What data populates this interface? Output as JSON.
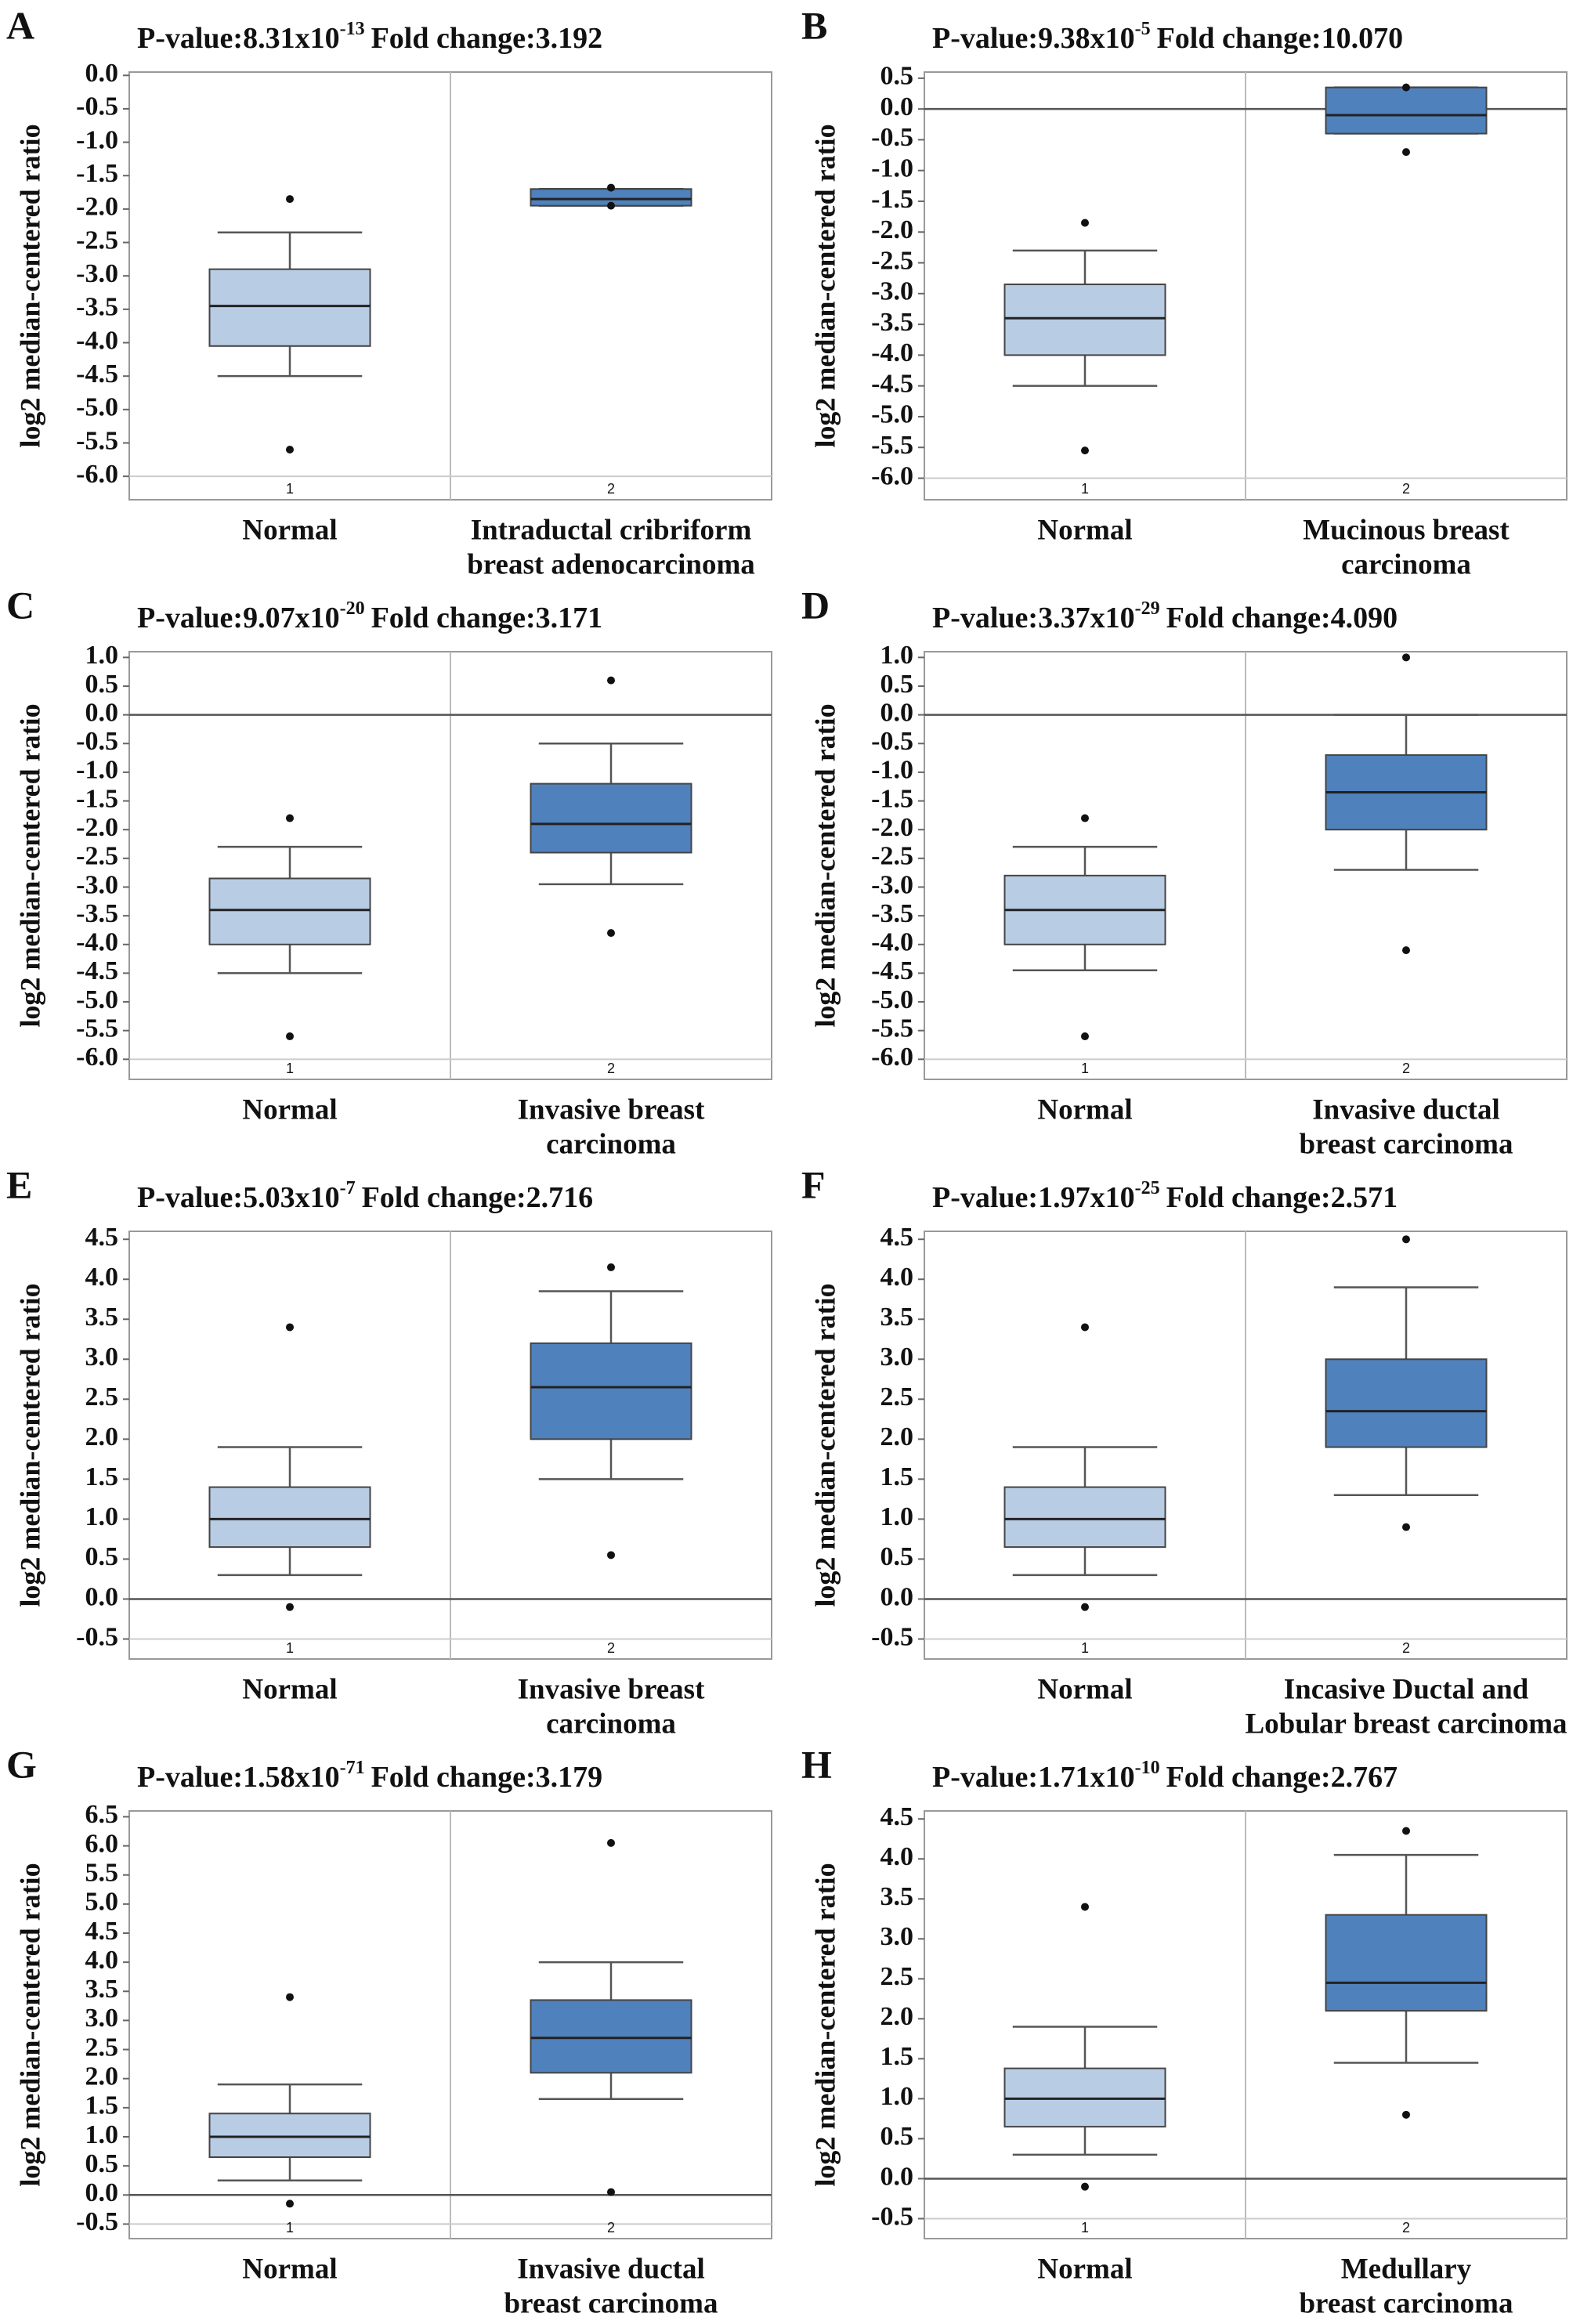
{
  "chart_data": [
    {
      "type": "box",
      "panel": "A",
      "title": {
        "pvalue": "P-value:8.31x10",
        "exponent": "-13",
        "fold_change": "Fold change:3.192"
      },
      "y_label": "log2 median-centered ratio",
      "categories": [
        [
          "Normal"
        ],
        [
          "Intraductal cribriform",
          "breast adenocarcinoma"
        ]
      ],
      "box_numbers": [
        1,
        2
      ],
      "colors": [
        "#b8cce4",
        "#4f81bd"
      ],
      "boxes": [
        {
          "whislo": -4.5,
          "q1": -4.05,
          "med": -3.45,
          "q3": -2.9,
          "whishi": -2.35,
          "fliers": [
            -1.85,
            -5.6
          ]
        },
        {
          "whislo": -1.95,
          "q1": -1.95,
          "med": -1.85,
          "q3": -1.7,
          "whishi": -1.7,
          "fliers": [
            -1.68,
            -1.95
          ]
        }
      ],
      "ylim": [
        -6.35,
        0.05
      ],
      "yticks": [
        {
          "value": 0,
          "label": "0.0"
        },
        -0.5,
        {
          "value": -1,
          "label": "-1.0"
        },
        -1.5,
        {
          "value": -2,
          "label": "-2.0"
        },
        -2.5,
        {
          "value": -3,
          "label": "-3.0"
        },
        -3.5,
        {
          "value": -4,
          "label": "-4.0"
        },
        -4.5,
        {
          "value": -5,
          "label": "-5.0"
        },
        -5.5,
        {
          "value": -6,
          "label": "-6.0"
        }
      ]
    },
    {
      "type": "box",
      "panel": "B",
      "title": {
        "pvalue": "P-value:9.38x10",
        "exponent": "-5",
        "fold_change": "Fold change:10.070"
      },
      "y_label": "log2 median-centered ratio",
      "categories": [
        [
          "Normal"
        ],
        [
          "Mucinous breast",
          "carcinoma"
        ]
      ],
      "box_numbers": [
        1,
        2
      ],
      "colors": [
        "#b8cce4",
        "#4f81bd"
      ],
      "boxes": [
        {
          "whislo": -4.5,
          "q1": -4.0,
          "med": -3.4,
          "q3": -2.85,
          "whishi": -2.3,
          "fliers": [
            -1.85,
            -5.55
          ]
        },
        {
          "whislo": -0.4,
          "q1": -0.4,
          "med": -0.1,
          "q3": 0.35,
          "whishi": 0.35,
          "fliers": [
            0.35,
            -0.7
          ]
        }
      ],
      "hline": 0,
      "ylim": [
        -6.35,
        0.6
      ],
      "yticks": [
        0.5,
        {
          "value": 0,
          "label": "0.0"
        },
        -0.5,
        {
          "value": -1,
          "label": "-1.0"
        },
        -1.5,
        {
          "value": -2,
          "label": "-2.0"
        },
        -2.5,
        {
          "value": -3,
          "label": "-3.0"
        },
        -3.5,
        {
          "value": -4,
          "label": "-4.0"
        },
        -4.5,
        {
          "value": -5,
          "label": "-5.0"
        },
        -5.5,
        {
          "value": -6,
          "label": "-6.0"
        }
      ]
    },
    {
      "type": "box",
      "panel": "C",
      "title": {
        "pvalue": "P-value:9.07x10",
        "exponent": "-20",
        "fold_change": "Fold change:3.171"
      },
      "y_label": "log2 median-centered ratio",
      "categories": [
        [
          "Normal"
        ],
        [
          "Invasive breast",
          "carcinoma"
        ]
      ],
      "box_numbers": [
        1,
        2
      ],
      "colors": [
        "#b8cce4",
        "#4f81bd"
      ],
      "boxes": [
        {
          "whislo": -4.5,
          "q1": -4.0,
          "med": -3.4,
          "q3": -2.85,
          "whishi": -2.3,
          "fliers": [
            -1.8,
            -5.6
          ]
        },
        {
          "whislo": -2.95,
          "q1": -2.4,
          "med": -1.9,
          "q3": -1.2,
          "whishi": -0.5,
          "fliers": [
            0.6,
            -3.8
          ]
        }
      ],
      "hline": 0,
      "ylim": [
        -6.35,
        1.1
      ],
      "yticks": [
        {
          "value": 1,
          "label": "1.0"
        },
        0.5,
        {
          "value": 0,
          "label": "0.0"
        },
        -0.5,
        {
          "value": -1,
          "label": "-1.0"
        },
        -1.5,
        {
          "value": -2,
          "label": "-2.0"
        },
        -2.5,
        {
          "value": -3,
          "label": "-3.0"
        },
        -3.5,
        {
          "value": -4,
          "label": "-4.0"
        },
        -4.5,
        {
          "value": -5,
          "label": "-5.0"
        },
        -5.5,
        {
          "value": -6,
          "label": "-6.0"
        }
      ]
    },
    {
      "type": "box",
      "panel": "D",
      "title": {
        "pvalue": "P-value:3.37x10",
        "exponent": "-29",
        "fold_change": "Fold change:4.090"
      },
      "y_label": "log2 median-centered ratio",
      "categories": [
        [
          "Normal"
        ],
        [
          "Invasive ductal",
          "breast carcinoma"
        ]
      ],
      "box_numbers": [
        1,
        2
      ],
      "colors": [
        "#b8cce4",
        "#4f81bd"
      ],
      "boxes": [
        {
          "whislo": -4.45,
          "q1": -4.0,
          "med": -3.4,
          "q3": -2.8,
          "whishi": -2.3,
          "fliers": [
            -1.8,
            -5.6
          ]
        },
        {
          "whislo": -2.7,
          "q1": -2.0,
          "med": -1.35,
          "q3": -0.7,
          "whishi": 0.0,
          "fliers": [
            1.0,
            -4.1
          ]
        }
      ],
      "hline": 0,
      "ylim": [
        -6.35,
        1.1
      ],
      "yticks": [
        {
          "value": 1,
          "label": "1.0"
        },
        0.5,
        {
          "value": 0,
          "label": "0.0"
        },
        -0.5,
        {
          "value": -1,
          "label": "-1.0"
        },
        -1.5,
        {
          "value": -2,
          "label": "-2.0"
        },
        -2.5,
        {
          "value": -3,
          "label": "-3.0"
        },
        -3.5,
        {
          "value": -4,
          "label": "-4.0"
        },
        -4.5,
        {
          "value": -5,
          "label": "-5.0"
        },
        -5.5,
        {
          "value": -6,
          "label": "-6.0"
        }
      ]
    },
    {
      "type": "box",
      "panel": "E",
      "title": {
        "pvalue": "P-value:5.03x10",
        "exponent": "-7",
        "fold_change": "Fold change:2.716"
      },
      "y_label": "log2 median-centered ratio",
      "categories": [
        [
          "Normal"
        ],
        [
          "Invasive breast",
          "carcinoma"
        ]
      ],
      "box_numbers": [
        1,
        2
      ],
      "colors": [
        "#b8cce4",
        "#4f81bd"
      ],
      "boxes": [
        {
          "whislo": 0.3,
          "q1": 0.65,
          "med": 1.0,
          "q3": 1.4,
          "whishi": 1.9,
          "fliers": [
            3.4,
            -0.1
          ]
        },
        {
          "whislo": 1.5,
          "q1": 2.0,
          "med": 2.65,
          "q3": 3.2,
          "whishi": 3.85,
          "fliers": [
            4.15,
            0.55
          ]
        }
      ],
      "hline": 0,
      "ylim": [
        -0.75,
        4.6
      ],
      "yticks": [
        4.5,
        {
          "value": 4,
          "label": "4.0"
        },
        3.5,
        {
          "value": 3,
          "label": "3.0"
        },
        2.5,
        {
          "value": 2,
          "label": "2.0"
        },
        1.5,
        {
          "value": 1,
          "label": "1.0"
        },
        0.5,
        {
          "value": 0,
          "label": "0.0"
        },
        -0.5
      ]
    },
    {
      "type": "box",
      "panel": "F",
      "title": {
        "pvalue": "P-value:1.97x10",
        "exponent": "-25",
        "fold_change": "Fold change:2.571"
      },
      "y_label": "log2 median-centered ratio",
      "categories": [
        [
          "Normal"
        ],
        [
          "Incasive Ductal and",
          "Lobular breast carcinoma"
        ]
      ],
      "box_numbers": [
        1,
        2
      ],
      "colors": [
        "#b8cce4",
        "#4f81bd"
      ],
      "boxes": [
        {
          "whislo": 0.3,
          "q1": 0.65,
          "med": 1.0,
          "q3": 1.4,
          "whishi": 1.9,
          "fliers": [
            3.4,
            -0.1
          ]
        },
        {
          "whislo": 1.3,
          "q1": 1.9,
          "med": 2.35,
          "q3": 3.0,
          "whishi": 3.9,
          "fliers": [
            4.5,
            0.9
          ]
        }
      ],
      "hline": 0,
      "ylim": [
        -0.75,
        4.6
      ],
      "yticks": [
        4.5,
        {
          "value": 4,
          "label": "4.0"
        },
        3.5,
        {
          "value": 3,
          "label": "3.0"
        },
        2.5,
        {
          "value": 2,
          "label": "2.0"
        },
        1.5,
        {
          "value": 1,
          "label": "1.0"
        },
        0.5,
        {
          "value": 0,
          "label": "0.0"
        },
        -0.5
      ]
    },
    {
      "type": "box",
      "panel": "G",
      "title": {
        "pvalue": "P-value:1.58x10",
        "exponent": "-71",
        "fold_change": "Fold change:3.179"
      },
      "y_label": "log2 median-centered ratio",
      "categories": [
        [
          "Normal"
        ],
        [
          "Invasive ductal",
          "breast carcinoma"
        ]
      ],
      "box_numbers": [
        1,
        2
      ],
      "colors": [
        "#b8cce4",
        "#4f81bd"
      ],
      "boxes": [
        {
          "whislo": 0.25,
          "q1": 0.65,
          "med": 1.0,
          "q3": 1.4,
          "whishi": 1.9,
          "fliers": [
            3.4,
            -0.15
          ]
        },
        {
          "whislo": 1.65,
          "q1": 2.1,
          "med": 2.7,
          "q3": 3.35,
          "whishi": 4.0,
          "fliers": [
            6.05,
            0.05
          ]
        }
      ],
      "hline": 0,
      "ylim": [
        -0.75,
        6.6
      ],
      "yticks": [
        6.5,
        {
          "value": 6,
          "label": "6.0"
        },
        5.5,
        {
          "value": 5,
          "label": "5.0"
        },
        4.5,
        {
          "value": 4,
          "label": "4.0"
        },
        3.5,
        {
          "value": 3,
          "label": "3.0"
        },
        2.5,
        {
          "value": 2,
          "label": "2.0"
        },
        1.5,
        {
          "value": 1,
          "label": "1.0"
        },
        0.5,
        {
          "value": 0,
          "label": "0.0"
        },
        -0.5
      ]
    },
    {
      "type": "box",
      "panel": "H",
      "title": {
        "pvalue": "P-value:1.71x10",
        "exponent": "-10",
        "fold_change": "Fold change:2.767"
      },
      "y_label": "log2 median-centered ratio",
      "categories": [
        [
          "Normal"
        ],
        [
          "Medullary",
          "breast carcinoma"
        ]
      ],
      "box_numbers": [
        1,
        2
      ],
      "colors": [
        "#b8cce4",
        "#4f81bd"
      ],
      "boxes": [
        {
          "whislo": 0.3,
          "q1": 0.65,
          "med": 1.0,
          "q3": 1.38,
          "whishi": 1.9,
          "fliers": [
            3.4,
            -0.1
          ]
        },
        {
          "whislo": 1.45,
          "q1": 2.1,
          "med": 2.45,
          "q3": 3.3,
          "whishi": 4.05,
          "fliers": [
            4.35,
            0.8
          ]
        }
      ],
      "hline": 0,
      "ylim": [
        -0.75,
        4.6
      ],
      "yticks": [
        4.5,
        {
          "value": 4,
          "label": "4.0"
        },
        3.5,
        {
          "value": 3,
          "label": "3.0"
        },
        2.5,
        {
          "value": 2,
          "label": "2.0"
        },
        1.5,
        {
          "value": 1,
          "label": "1.0"
        },
        0.5,
        {
          "value": 0,
          "label": "0.0"
        },
        -0.5
      ]
    }
  ]
}
